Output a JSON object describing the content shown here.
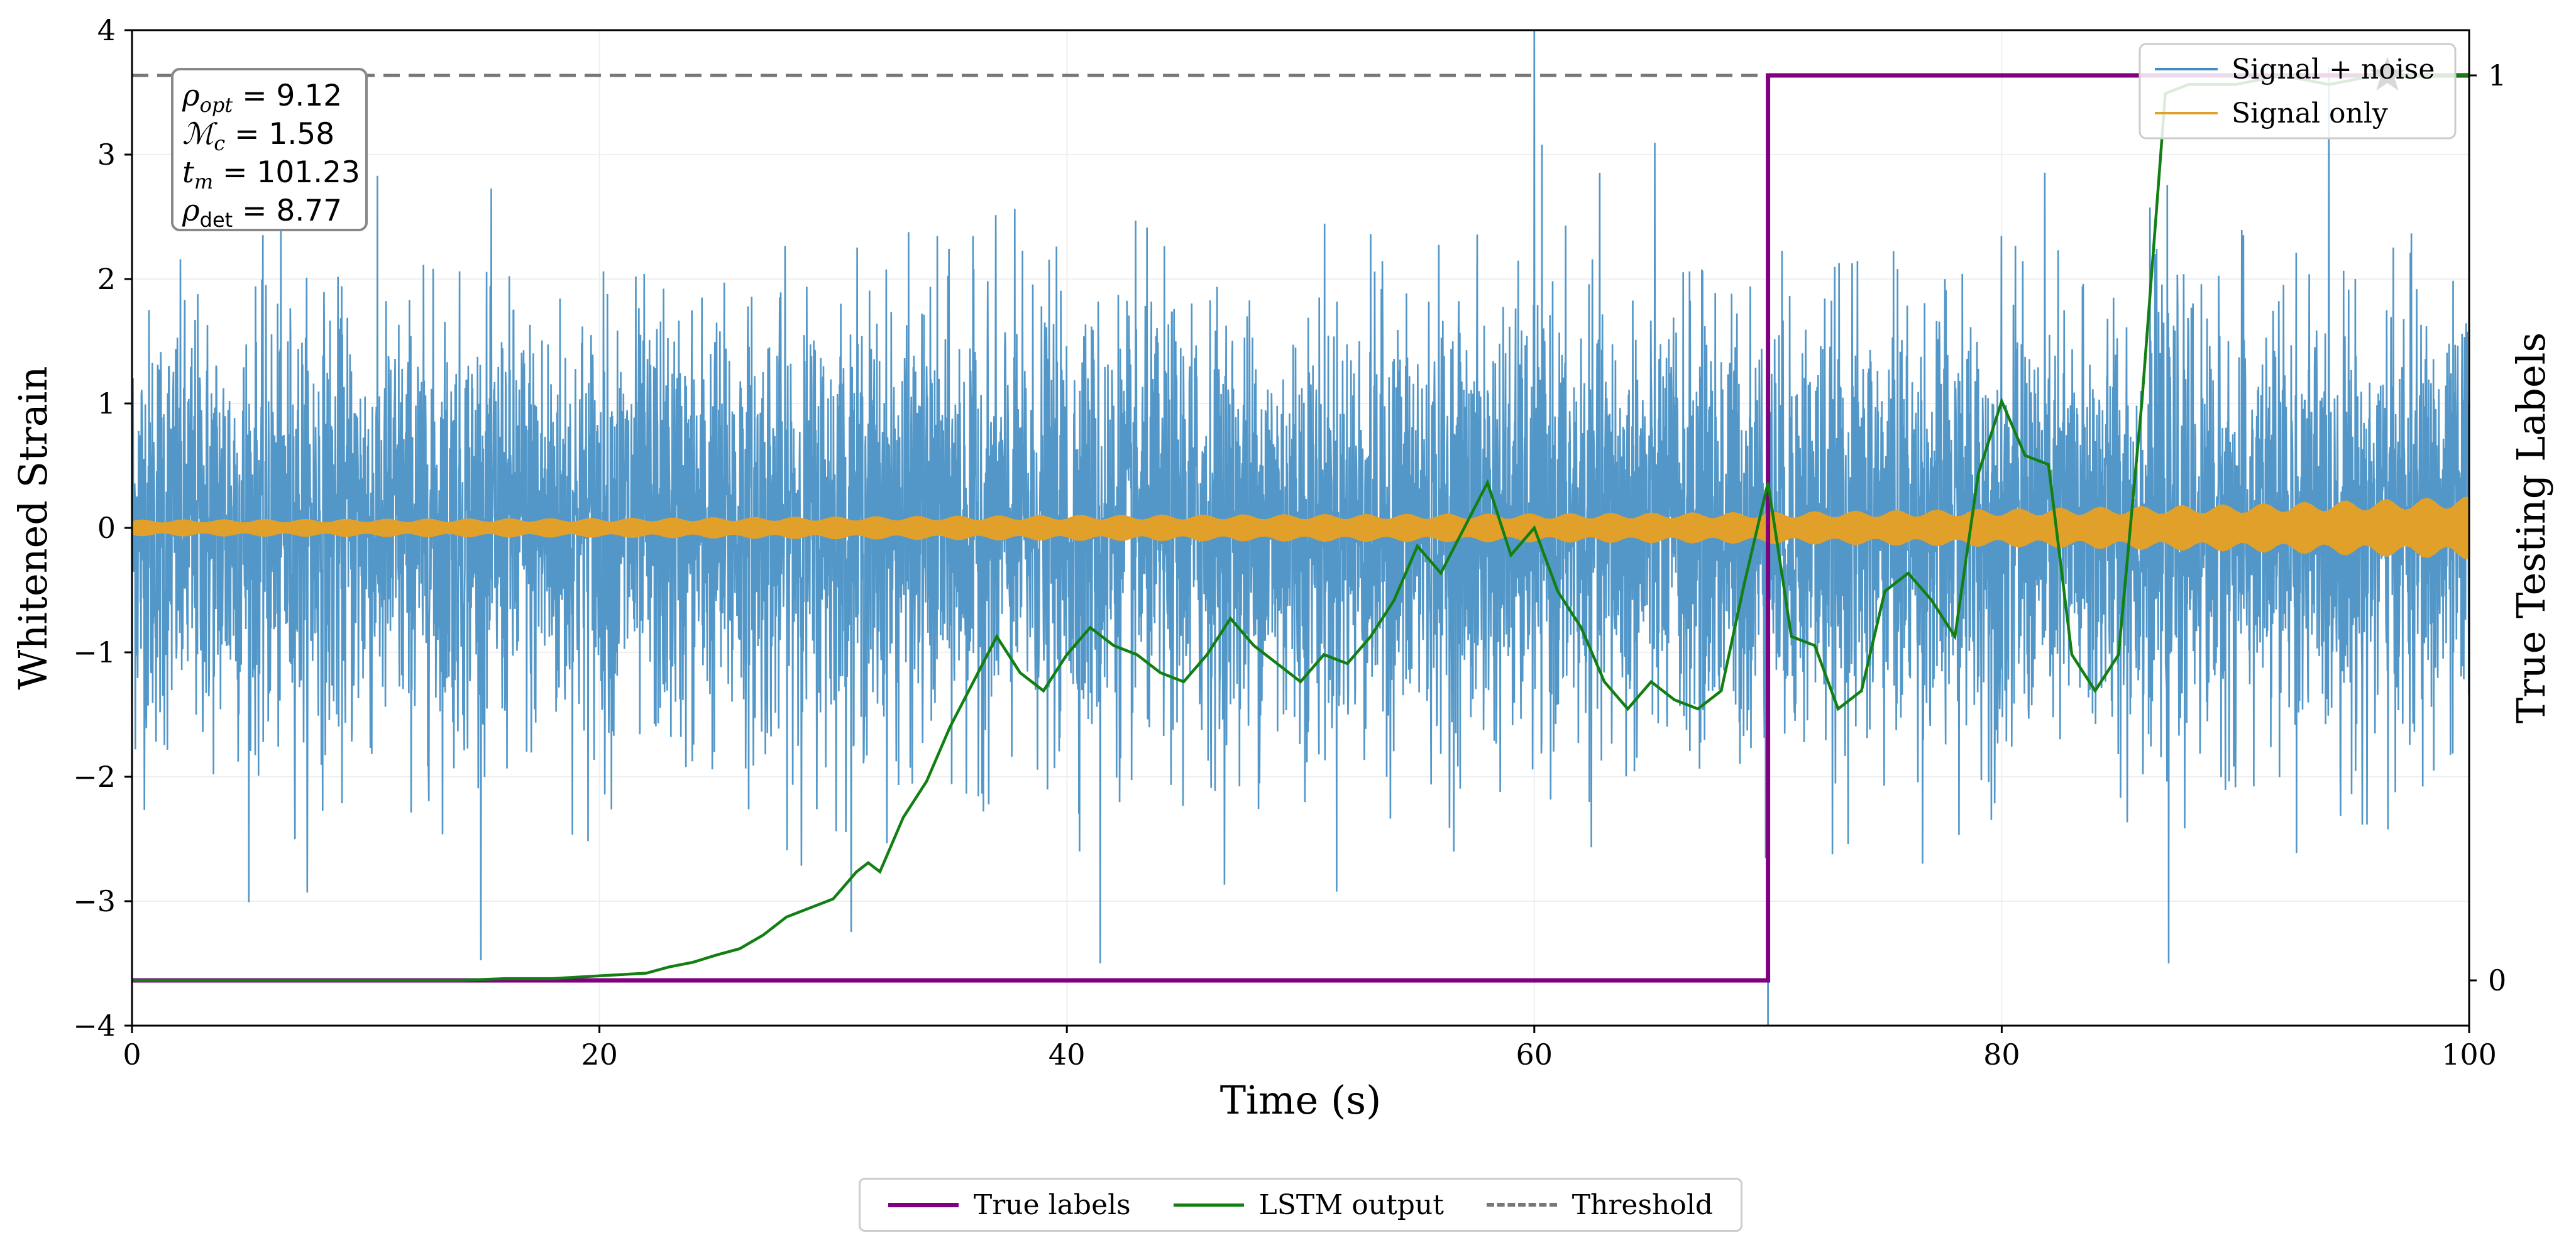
{
  "chart_data": {
    "type": "line",
    "x_axis": {
      "label": "Time (s)",
      "range": [
        0,
        100
      ],
      "ticks": [
        0,
        20,
        40,
        60,
        80,
        100
      ]
    },
    "y_axis_left": {
      "label": "Whitened Strain",
      "range": [
        -4,
        4
      ],
      "ticks": [
        -4,
        -3,
        -2,
        -1,
        0,
        1,
        2,
        3,
        4
      ]
    },
    "y_axis_right": {
      "label": "True Testing Labels",
      "range": [
        -0.05,
        1.05
      ],
      "ticks": [
        0,
        1
      ]
    },
    "grid": true,
    "series": [
      {
        "name": "Signal + noise",
        "axis": "left",
        "color": "#3f8cc2",
        "description_values": {
          "noise_amplitude_approx": 1.2,
          "x_range": [
            0,
            100
          ]
        }
      },
      {
        "name": "Signal only",
        "axis": "left",
        "color": "#e1a02a",
        "envelope": {
          "x": [
            0,
            20,
            40,
            60,
            70,
            80,
            90,
            100
          ],
          "amplitude": [
            0.05,
            0.06,
            0.08,
            0.09,
            0.1,
            0.12,
            0.15,
            0.2
          ]
        }
      },
      {
        "name": "True labels",
        "axis": "right",
        "color": "#800080",
        "x": [
          0,
          70,
          70,
          100
        ],
        "y": [
          0,
          0,
          1,
          1
        ]
      },
      {
        "name": "LSTM output",
        "axis": "right",
        "color": "#127f12",
        "x": [
          0,
          10,
          14,
          16,
          18,
          20,
          22,
          23,
          24,
          25,
          26,
          27,
          28,
          29,
          30,
          31,
          31.5,
          32,
          32.5,
          33,
          34,
          35,
          36,
          37,
          38,
          39,
          40,
          41,
          42,
          43,
          44,
          45,
          46,
          47,
          48,
          49,
          50,
          51,
          52,
          53,
          54,
          55,
          56,
          57,
          58,
          59,
          60,
          61,
          62,
          63,
          64,
          65,
          66,
          67,
          68,
          69,
          70,
          71,
          72,
          73,
          74,
          75,
          76,
          77,
          78,
          79,
          80,
          81,
          82,
          83,
          84,
          85,
          86,
          87,
          88,
          90,
          92,
          94,
          96,
          98,
          100
        ],
        "y": [
          0,
          0,
          0,
          0.002,
          0.002,
          0.005,
          0.008,
          0.015,
          0.02,
          0.028,
          0.035,
          0.05,
          0.07,
          0.08,
          0.09,
          0.12,
          0.13,
          0.12,
          0.15,
          0.18,
          0.22,
          0.28,
          0.33,
          0.38,
          0.34,
          0.32,
          0.36,
          0.39,
          0.37,
          0.36,
          0.34,
          0.33,
          0.36,
          0.4,
          0.37,
          0.35,
          0.33,
          0.36,
          0.35,
          0.38,
          0.42,
          0.48,
          0.45,
          0.5,
          0.55,
          0.47,
          0.5,
          0.43,
          0.39,
          0.33,
          0.3,
          0.33,
          0.31,
          0.3,
          0.32,
          0.44,
          0.55,
          0.38,
          0.37,
          0.3,
          0.32,
          0.43,
          0.45,
          0.42,
          0.38,
          0.56,
          0.64,
          0.58,
          0.57,
          0.36,
          0.32,
          0.36,
          0.64,
          0.98,
          0.99,
          0.99,
          1.0,
          0.99,
          1.0,
          1.0,
          1.0
        ]
      },
      {
        "name": "Threshold",
        "axis": "right",
        "color": "#777777",
        "dashed": true,
        "y": 1
      }
    ],
    "annotations": [
      {
        "type": "star-marker",
        "x": 96.5,
        "y_right": 1.0,
        "color": "#000000"
      },
      {
        "type": "text-box",
        "lines": [
          "ρopt = 9.12",
          "ℳc = 1.58",
          "tm = 101.23",
          "ρdet = 8.77"
        ]
      }
    ],
    "legends": {
      "top_right": [
        "Signal + noise",
        "Signal only"
      ],
      "bottom": [
        "True labels",
        "LSTM output",
        "Threshold"
      ]
    }
  },
  "info_box": {
    "rho_opt_sym": "ρ",
    "rho_opt_sub": "opt",
    "rho_opt_val": " = 9.12",
    "mc_sym": "ℳ",
    "mc_sub": "c",
    "mc_val": " = 1.58",
    "tm_sym": "t",
    "tm_sub": "m",
    "tm_val": " = 101.23",
    "rho_det_sym": "ρ",
    "rho_det_sub": "det",
    "rho_det_val": " = 8.77"
  },
  "colors": {
    "noise": "#3f8cc2",
    "signal": "#e1a02a",
    "labels": "#800080",
    "lstm": "#127f12",
    "threshold": "#777777"
  }
}
